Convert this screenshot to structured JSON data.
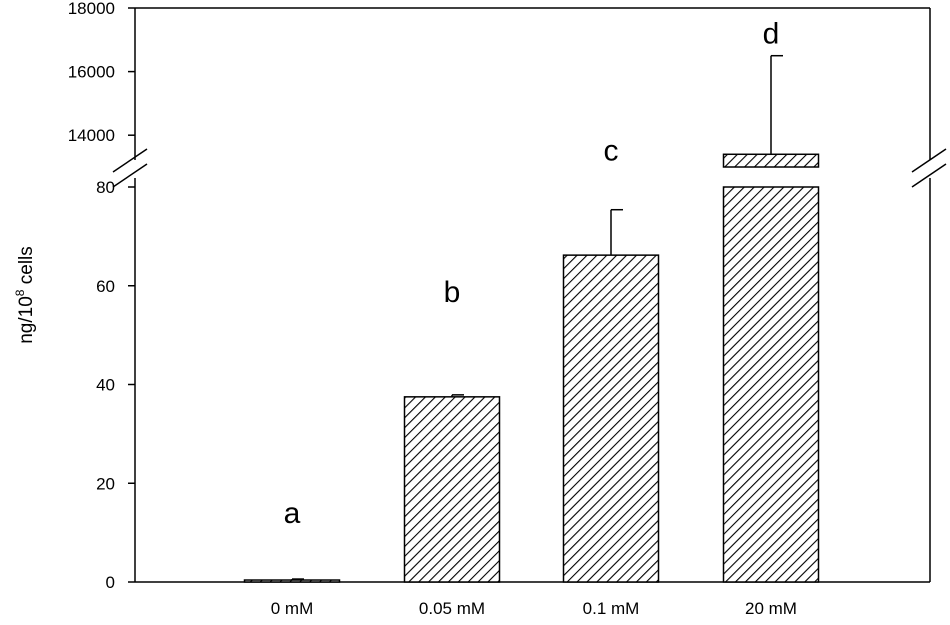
{
  "chart_data": {
    "type": "bar",
    "title": "",
    "xlabel": "",
    "ylabel": "ng/10",
    "ylabel_superscript": "8",
    "ylabel_suffix": " cells",
    "categories": [
      "0 mM",
      "0.05 mM",
      "0.1 mM",
      "20 mM"
    ],
    "values": [
      0.4,
      37.5,
      66.2,
      13400
    ],
    "errors": [
      0.2,
      0.4,
      9.2,
      3100
    ],
    "significance": [
      "a",
      "b",
      "c",
      "d"
    ],
    "y_axis_break": {
      "lower_range": [
        0,
        80
      ],
      "upper_range": [
        13000,
        18000
      ]
    },
    "lower_ticks": [
      "0",
      "20",
      "40",
      "60",
      "80"
    ],
    "upper_ticks": [
      "14000",
      "16000",
      "18000"
    ],
    "pattern": "diagonal-hatch",
    "grid": false,
    "legend": "none"
  }
}
